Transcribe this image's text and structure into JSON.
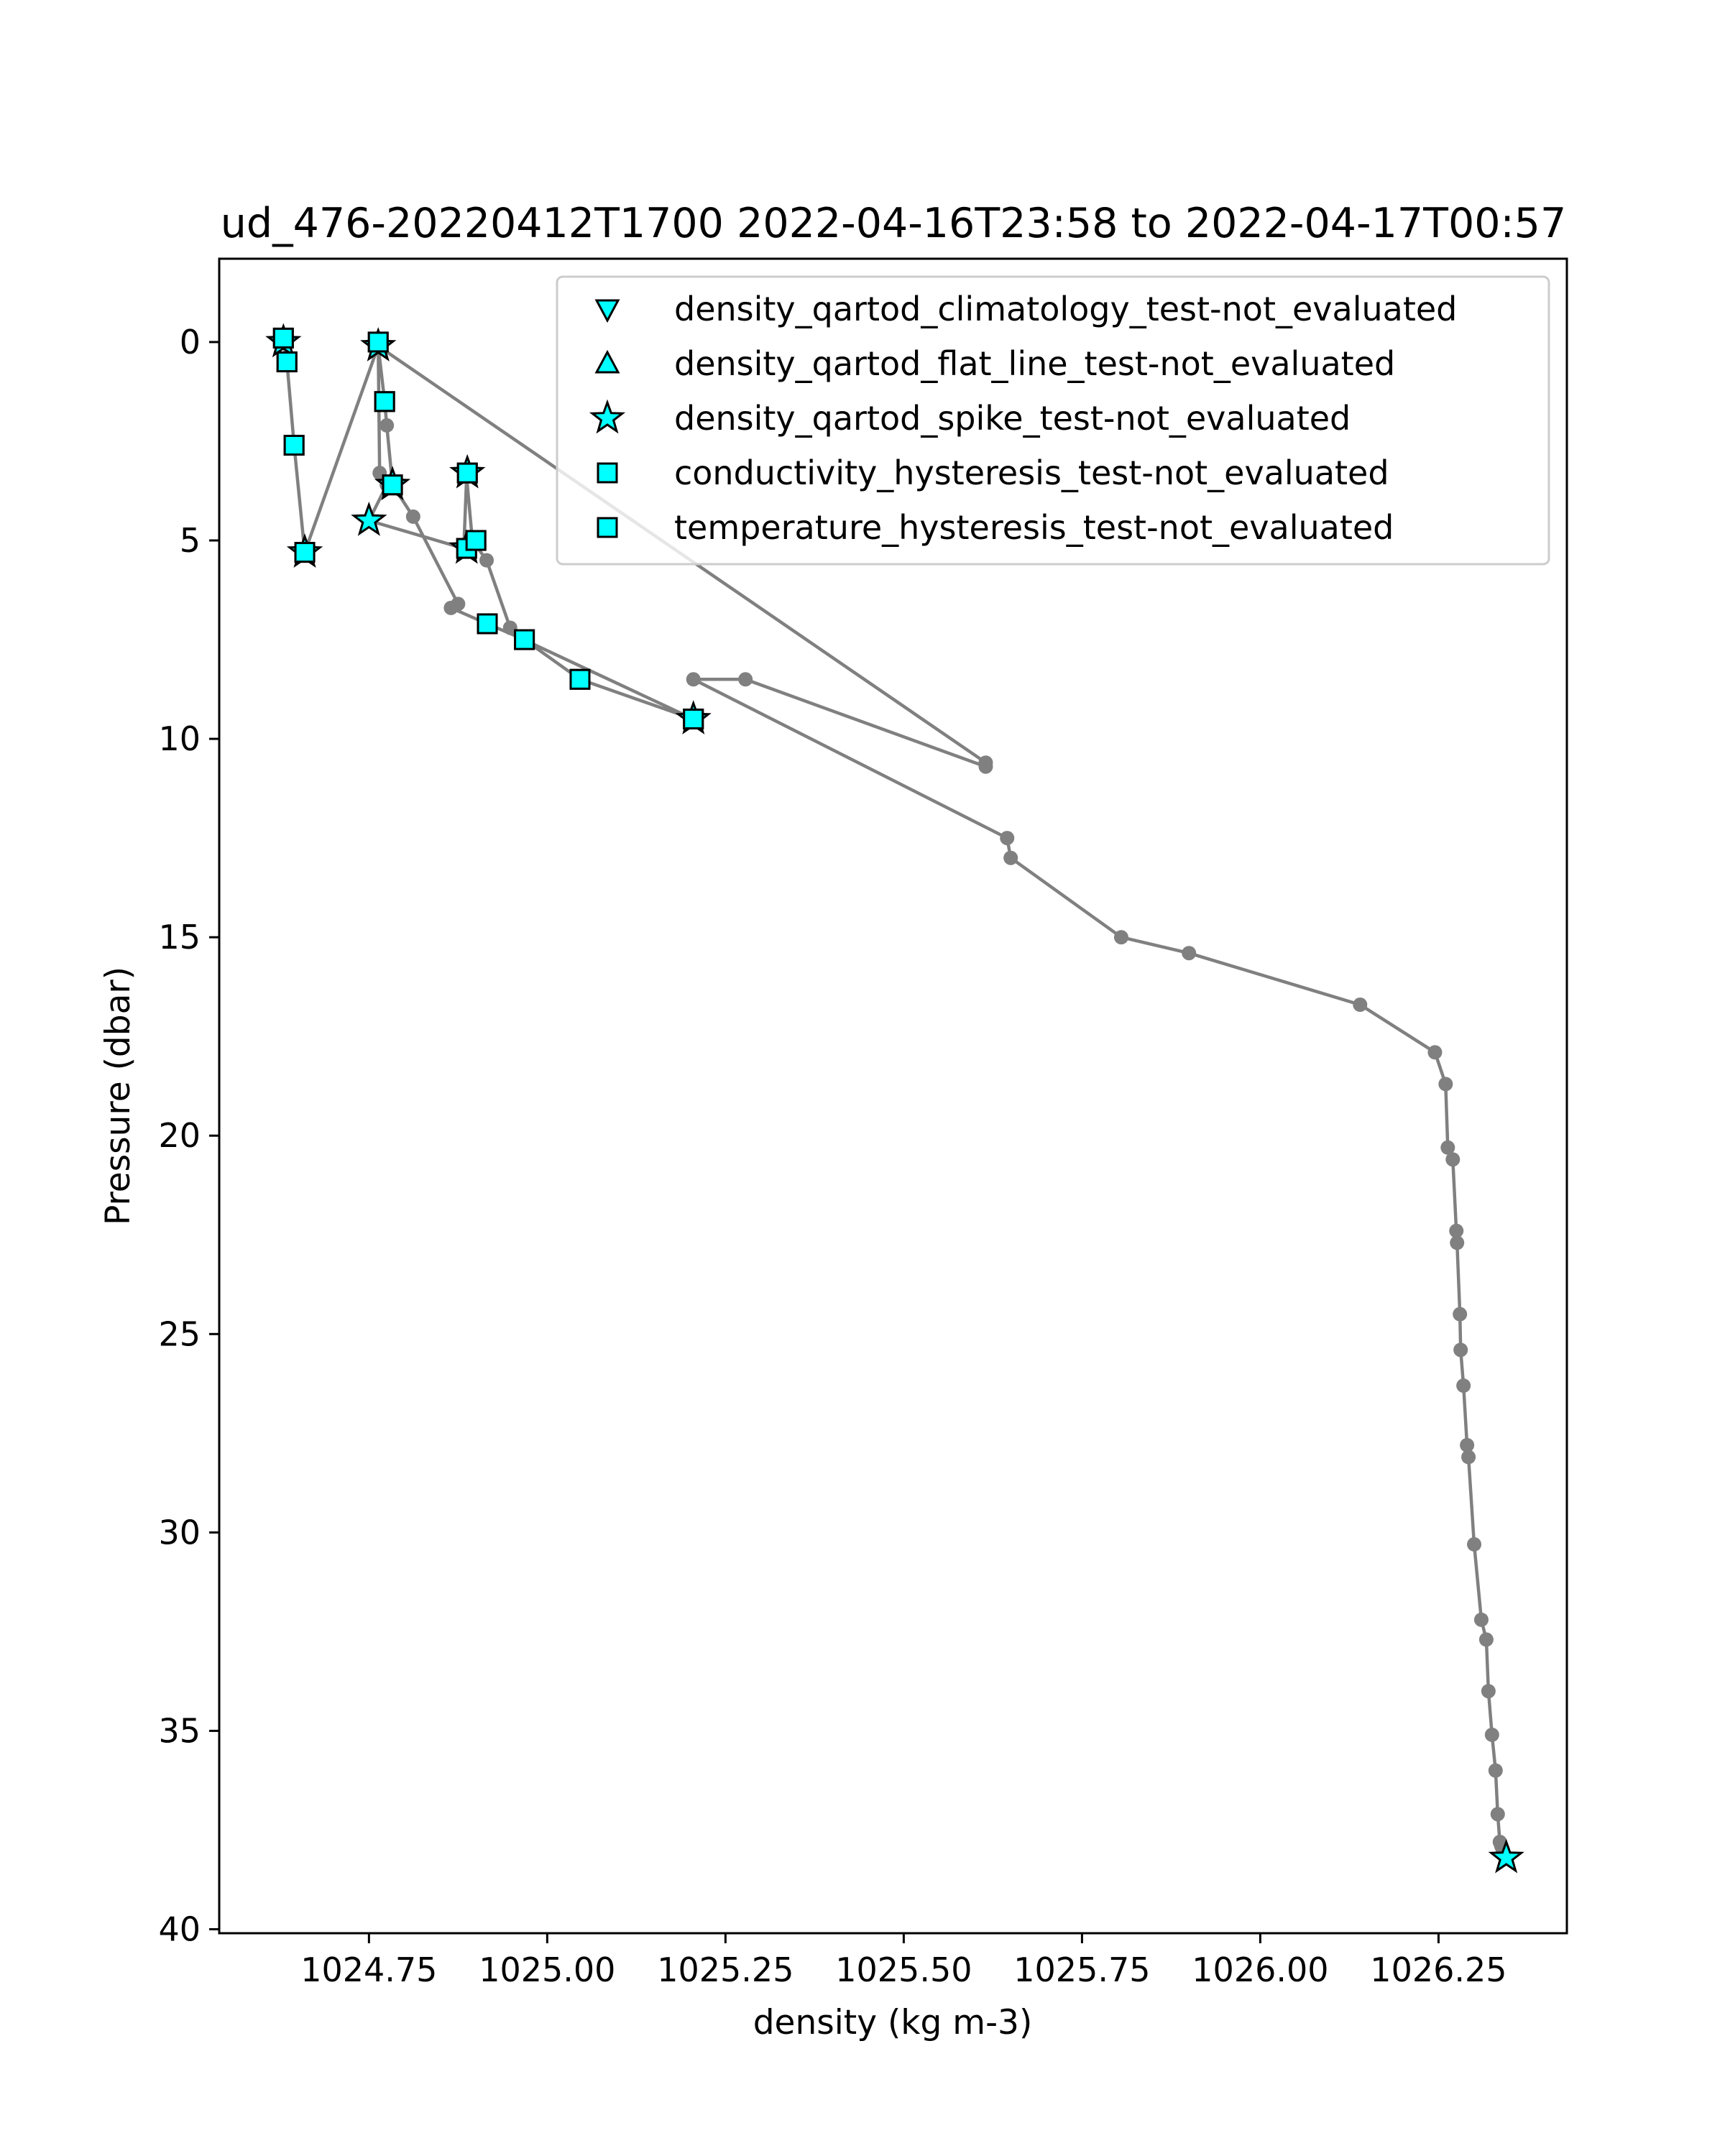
{
  "chart_data": {
    "type": "scatter",
    "title": "ud_476-20220412T1700 2022-04-16T23:58 to 2022-04-17T00:57",
    "xlabel": "density (kg m-3)",
    "ylabel": "Pressure (dbar)",
    "xlim": [
      1024.54,
      1026.43
    ],
    "ylim": [
      40.1,
      -2.1
    ],
    "y_inverted": true,
    "xticks": [
      1024.75,
      1025.0,
      1025.25,
      1025.5,
      1025.75,
      1026.0,
      1026.25
    ],
    "xtick_labels": [
      "1024.75",
      "1025.00",
      "1025.25",
      "1025.50",
      "1025.75",
      "1026.00",
      "1026.25"
    ],
    "yticks": [
      0,
      5,
      10,
      15,
      20,
      25,
      30,
      35,
      40
    ],
    "ytick_labels": [
      "0",
      "5",
      "10",
      "15",
      "20",
      "25",
      "30",
      "35",
      "40"
    ],
    "grid": false,
    "legend_position": "top-right",
    "colors": {
      "line": "#808080",
      "marker_fill": "#00ffff",
      "marker_edge": "#000000"
    },
    "profile": {
      "x": [
        1024.63,
        1024.635,
        1024.645,
        1024.66,
        1024.763,
        1024.772,
        1024.775,
        1024.783,
        1024.812,
        1024.875,
        1024.865,
        1024.916,
        1024.968,
        1025.046,
        1025.205,
        1025.205,
        1024.967,
        1024.948,
        1024.915,
        1024.895,
        1024.887,
        1024.883,
        1024.75,
        1024.775,
        1024.765,
        1024.763,
        1025.615,
        1025.615,
        1025.278,
        1025.205,
        1025.645,
        1025.65,
        1025.805,
        1025.9,
        1026.14,
        1026.245,
        1026.26,
        1026.263,
        1026.27,
        1026.275,
        1026.276,
        1026.28,
        1026.281,
        1026.285,
        1026.29,
        1026.292,
        1026.3,
        1026.31,
        1026.317,
        1026.32,
        1026.325,
        1026.33,
        1026.333,
        1026.336,
        1026.338,
        1026.34,
        1026.345
      ],
      "y": [
        0.0,
        0.5,
        2.6,
        5.3,
        0.1,
        1.5,
        2.1,
        3.6,
        4.4,
        6.6,
        6.7,
        7.1,
        7.5,
        8.5,
        9.5,
        9.5,
        7.5,
        7.2,
        5.5,
        5.0,
        3.4,
        5.2,
        4.5,
        3.6,
        3.3,
        0.1,
        10.6,
        10.7,
        8.5,
        8.5,
        12.5,
        13.0,
        15.0,
        15.4,
        16.7,
        17.9,
        18.7,
        20.3,
        20.6,
        22.4,
        22.7,
        24.5,
        25.4,
        26.3,
        27.8,
        28.1,
        30.3,
        32.2,
        32.7,
        34.0,
        35.1,
        36.0,
        37.1,
        37.8,
        37.9,
        38.0,
        38.2
      ]
    },
    "series": [
      {
        "name": "density_qartod_climatology_test-not_evaluated",
        "marker": "triangle-down",
        "x": [],
        "y": []
      },
      {
        "name": "density_qartod_flat_line_test-not_evaluated",
        "marker": "triangle-up",
        "x": [],
        "y": []
      },
      {
        "name": "density_qartod_spike_test-not_evaluated",
        "marker": "star",
        "x": [
          1024.63,
          1024.763,
          1024.66,
          1024.783,
          1024.888,
          1024.75,
          1024.887,
          1025.205,
          1026.345
        ],
        "y": [
          0.0,
          0.1,
          5.3,
          3.6,
          3.3,
          4.5,
          5.2,
          9.5,
          38.2
        ]
      },
      {
        "name": "conductivity_hysteresis_test-not_evaluated",
        "marker": "square",
        "x": [
          1024.63,
          1024.635,
          1024.645,
          1024.66,
          1024.763,
          1024.772,
          1024.783,
          1024.888,
          1024.887,
          1024.9,
          1024.916,
          1024.968,
          1025.046,
          1025.205
        ],
        "y": [
          -0.1,
          0.5,
          2.6,
          5.3,
          0.0,
          1.5,
          3.6,
          3.3,
          5.2,
          5.0,
          7.1,
          7.5,
          8.5,
          9.5
        ]
      },
      {
        "name": "temperature_hysteresis_test-not_evaluated",
        "marker": "square",
        "x": [
          1024.63,
          1024.635,
          1024.645,
          1024.66,
          1024.763,
          1024.772,
          1024.783,
          1024.888,
          1024.887,
          1024.9,
          1024.916,
          1024.968,
          1025.046,
          1025.205
        ],
        "y": [
          -0.1,
          0.5,
          2.6,
          5.3,
          0.0,
          1.5,
          3.6,
          3.3,
          5.2,
          5.0,
          7.1,
          7.5,
          8.5,
          9.5
        ]
      }
    ]
  }
}
